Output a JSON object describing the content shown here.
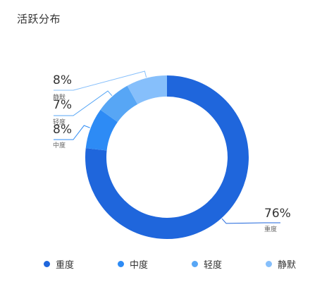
{
  "title": "活跃分布",
  "colors": {
    "heavy": "#1f66dc",
    "medium": "#2d8bf5",
    "light": "#57a6f5",
    "silent": "#86bffb"
  },
  "chart_data": {
    "type": "pie",
    "variant": "donut",
    "title": "活跃分布",
    "slices": [
      {
        "name": "重度",
        "value": 76,
        "label": "76%"
      },
      {
        "name": "中度",
        "value": 8,
        "label": "8%"
      },
      {
        "name": "轻度",
        "value": 7,
        "label": "7%"
      },
      {
        "name": "静默",
        "value": 8,
        "label": "8%"
      }
    ],
    "legend_placement": "bottom"
  },
  "legend": [
    "重度",
    "中度",
    "轻度",
    "静默"
  ]
}
